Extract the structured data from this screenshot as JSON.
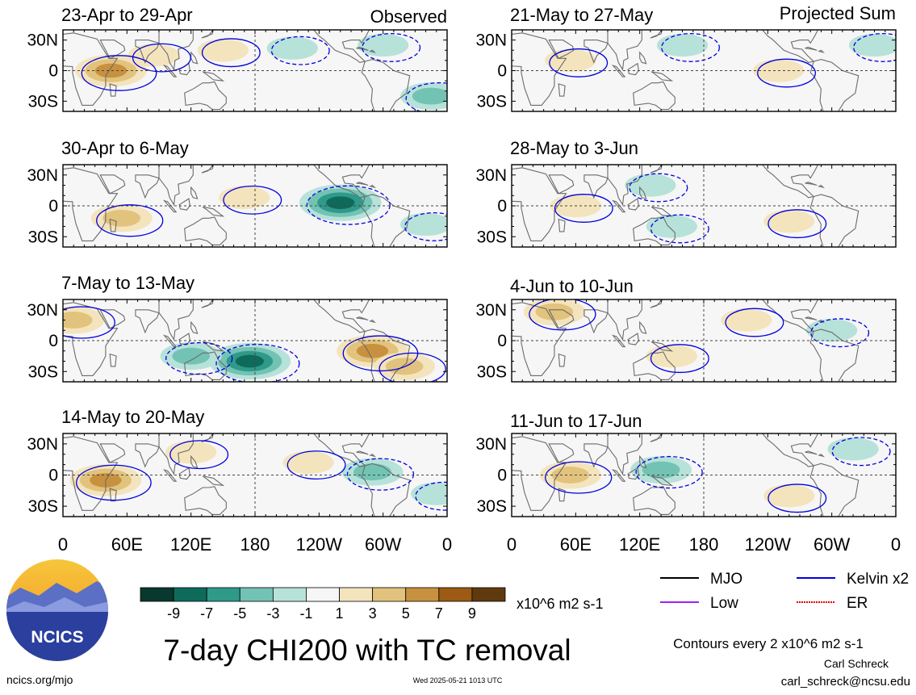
{
  "figure": {
    "title": "7-day CHI200 with TC removal",
    "units": "x10^6 m2 s-1",
    "contour_note": "Contours every 2 x10^6 m2 s-1",
    "author": "Carl Schreck",
    "email": "carl_schreck@ncsu.edu",
    "site": "ncics.org/mjo",
    "timestamp": "Wed 2025-05-21 1013 UTC",
    "logo_text": "NCICS"
  },
  "columns": [
    {
      "label": "Observed"
    },
    {
      "label": "Projected Sum"
    }
  ],
  "panels": [
    {
      "title": "23-Apr to 29-Apr"
    },
    {
      "title": "30-Apr to 6-May"
    },
    {
      "title": "7-May to 13-May"
    },
    {
      "title": "14-May to 20-May"
    },
    {
      "title": "21-May to 27-May"
    },
    {
      "title": "28-May to 3-Jun"
    },
    {
      "title": "4-Jun to 10-Jun"
    },
    {
      "title": "11-Jun to 17-Jun"
    }
  ],
  "axes": {
    "lat_ticks": [
      "30N",
      "0",
      "30S"
    ],
    "lon_ticks": [
      "0",
      "60E",
      "120E",
      "180",
      "120W",
      "60W",
      "0"
    ]
  },
  "colorbar": {
    "colors": [
      "#08382e",
      "#0e6b5c",
      "#2f9a89",
      "#73c3b4",
      "#b7e2d9",
      "#f6f6f6",
      "#f4e4bd",
      "#e2c37d",
      "#c8913f",
      "#9c5a15",
      "#603a0f"
    ],
    "labels": [
      "-9",
      "-7",
      "-5",
      "-3",
      "-1",
      "1",
      "3",
      "5",
      "7",
      "9"
    ]
  },
  "legend": [
    {
      "label": "MJO",
      "color": "#000000",
      "style": "solid"
    },
    {
      "label": "Kelvin x2",
      "color": "#0000e0",
      "style": "solid"
    },
    {
      "label": "Low",
      "color": "#a020f0",
      "style": "solid"
    },
    {
      "label": "ER",
      "color": "#e00000",
      "style": "dotted"
    }
  ],
  "chart_data": {
    "type": "heatmap",
    "title": "7-day CHI200 with TC removal",
    "variable": "CHI200 anomaly",
    "units": "x10^6 m2 s-1",
    "color_levels": [
      -9,
      -7,
      -5,
      -3,
      -1,
      1,
      3,
      5,
      7,
      9
    ],
    "lat_range": [
      -40,
      40
    ],
    "lon_range": [
      0,
      360
    ],
    "contour_interval": 2,
    "panels": [
      {
        "period": "23-Apr to 29-Apr",
        "kind": "Observed",
        "features": [
          {
            "lon": 45,
            "lat": 0,
            "value": 7
          },
          {
            "lon": 85,
            "lat": 15,
            "value": 3
          },
          {
            "lon": 150,
            "lat": 20,
            "value": 3
          },
          {
            "lon": 215,
            "lat": 22,
            "value": -3
          },
          {
            "lon": 300,
            "lat": 25,
            "value": -3
          },
          {
            "lon": 345,
            "lat": -25,
            "value": -5
          }
        ]
      },
      {
        "period": "30-Apr to 6-May",
        "kind": "Observed",
        "features": [
          {
            "lon": 55,
            "lat": -12,
            "value": 5
          },
          {
            "lon": 170,
            "lat": 8,
            "value": 3
          },
          {
            "lon": 260,
            "lat": 3,
            "value": -9
          },
          {
            "lon": 340,
            "lat": -18,
            "value": -3
          }
        ]
      },
      {
        "period": "7-May to 13-May",
        "kind": "Observed",
        "features": [
          {
            "lon": 10,
            "lat": 20,
            "value": 5
          },
          {
            "lon": 175,
            "lat": -20,
            "value": -9
          },
          {
            "lon": 120,
            "lat": -15,
            "value": -5
          },
          {
            "lon": 290,
            "lat": -10,
            "value": 7
          },
          {
            "lon": 320,
            "lat": -25,
            "value": 5
          }
        ]
      },
      {
        "period": "14-May to 20-May",
        "kind": "Observed",
        "features": [
          {
            "lon": 40,
            "lat": -5,
            "value": 7
          },
          {
            "lon": 120,
            "lat": 22,
            "value": 3
          },
          {
            "lon": 230,
            "lat": 12,
            "value": 3
          },
          {
            "lon": 290,
            "lat": 3,
            "value": -5
          },
          {
            "lon": 350,
            "lat": -18,
            "value": -3
          }
        ]
      },
      {
        "period": "21-May to 27-May",
        "kind": "Projected Sum",
        "features": [
          {
            "lon": 55,
            "lat": 10,
            "value": 3
          },
          {
            "lon": 160,
            "lat": 25,
            "value": -3
          },
          {
            "lon": 250,
            "lat": 0,
            "value": 3
          },
          {
            "lon": 340,
            "lat": 25,
            "value": -3
          }
        ]
      },
      {
        "period": "28-May to 3-Jun",
        "kind": "Projected Sum",
        "features": [
          {
            "lon": 60,
            "lat": 0,
            "value": 3
          },
          {
            "lon": 130,
            "lat": 20,
            "value": -3
          },
          {
            "lon": 150,
            "lat": -20,
            "value": -3
          },
          {
            "lon": 260,
            "lat": -15,
            "value": 3
          }
        ]
      },
      {
        "period": "4-Jun to 10-Jun",
        "kind": "Projected Sum",
        "features": [
          {
            "lon": 40,
            "lat": 28,
            "value": 5
          },
          {
            "lon": 150,
            "lat": -15,
            "value": 3
          },
          {
            "lon": 220,
            "lat": 20,
            "value": 3
          },
          {
            "lon": 300,
            "lat": 10,
            "value": -3
          }
        ]
      },
      {
        "period": "11-Jun to 17-Jun",
        "kind": "Projected Sum",
        "features": [
          {
            "lon": 55,
            "lat": 0,
            "value": 5
          },
          {
            "lon": 140,
            "lat": 5,
            "value": -5
          },
          {
            "lon": 260,
            "lat": -20,
            "value": 3
          },
          {
            "lon": 320,
            "lat": 25,
            "value": -3
          }
        ]
      }
    ]
  }
}
